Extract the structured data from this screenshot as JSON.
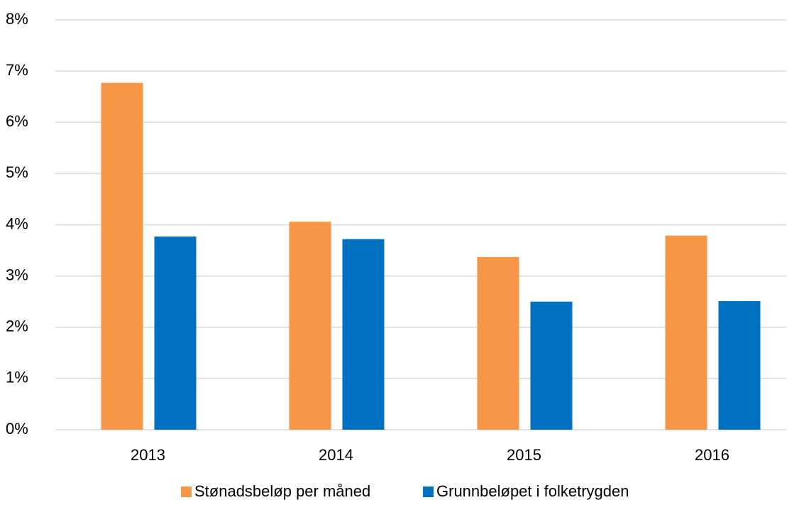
{
  "chart_data": {
    "type": "bar",
    "categories": [
      "2013",
      "2014",
      "2015",
      "2016"
    ],
    "series": [
      {
        "name": "Stønadsbeløp per måned",
        "color": "#f79646",
        "values": [
          6.77,
          4.06,
          3.37,
          3.79
        ]
      },
      {
        "name": "Grunnbeløpet i folketrygden",
        "color": "#0070c0",
        "values": [
          3.77,
          3.72,
          2.5,
          2.51
        ]
      }
    ],
    "ylim": [
      0,
      8
    ],
    "yticks": [
      {
        "value": 0,
        "label": "0%"
      },
      {
        "value": 1,
        "label": "1%"
      },
      {
        "value": 2,
        "label": "2%"
      },
      {
        "value": 3,
        "label": "3%"
      },
      {
        "value": 4,
        "label": "4%"
      },
      {
        "value": 5,
        "label": "5%"
      },
      {
        "value": 6,
        "label": "6%"
      },
      {
        "value": 7,
        "label": "7%"
      },
      {
        "value": 8,
        "label": "8%"
      }
    ],
    "grid": true,
    "legend": "bottom"
  }
}
